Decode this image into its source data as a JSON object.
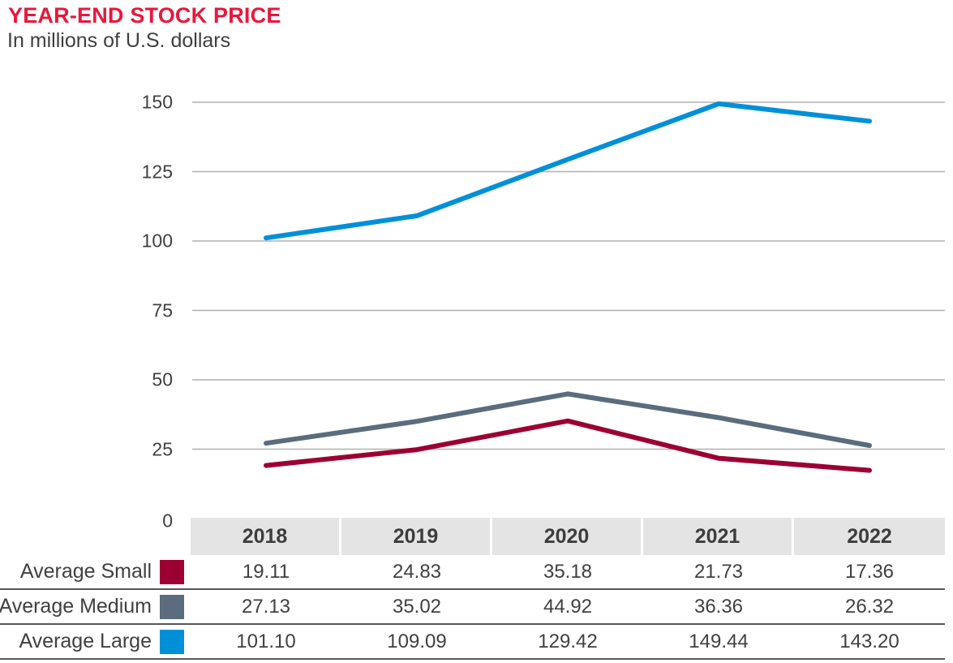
{
  "header": {
    "title": "YEAR-END STOCK PRICE",
    "subtitle": "In millions of U.S. dollars"
  },
  "chart_data": {
    "type": "line",
    "title": "YEAR-END STOCK PRICE",
    "subtitle": "In millions of U.S. dollars",
    "categories": [
      "2018",
      "2019",
      "2020",
      "2021",
      "2022"
    ],
    "series": [
      {
        "name": "Average Small",
        "color": "#9c0033",
        "values": [
          19.11,
          24.83,
          35.18,
          21.73,
          17.36
        ]
      },
      {
        "name": "Average Medium",
        "color": "#5a6c7d",
        "values": [
          27.13,
          35.02,
          44.92,
          36.36,
          26.32
        ]
      },
      {
        "name": "Average Large",
        "color": "#0090d8",
        "values": [
          101.1,
          109.09,
          129.42,
          149.44,
          143.2
        ]
      }
    ],
    "xlabel": "",
    "ylabel": "",
    "ylim": [
      0,
      150
    ],
    "yticks": [
      0,
      25,
      50,
      75,
      100,
      125,
      150
    ],
    "grid": "horizontal",
    "legend_position": "table-rows-left",
    "value_decimals": 2
  },
  "colors": {
    "title": "#e8173c",
    "text": "#404040",
    "gridline": "#b0b0b0",
    "header_band": "#e4e4e4",
    "row_divider": "#55575a"
  }
}
